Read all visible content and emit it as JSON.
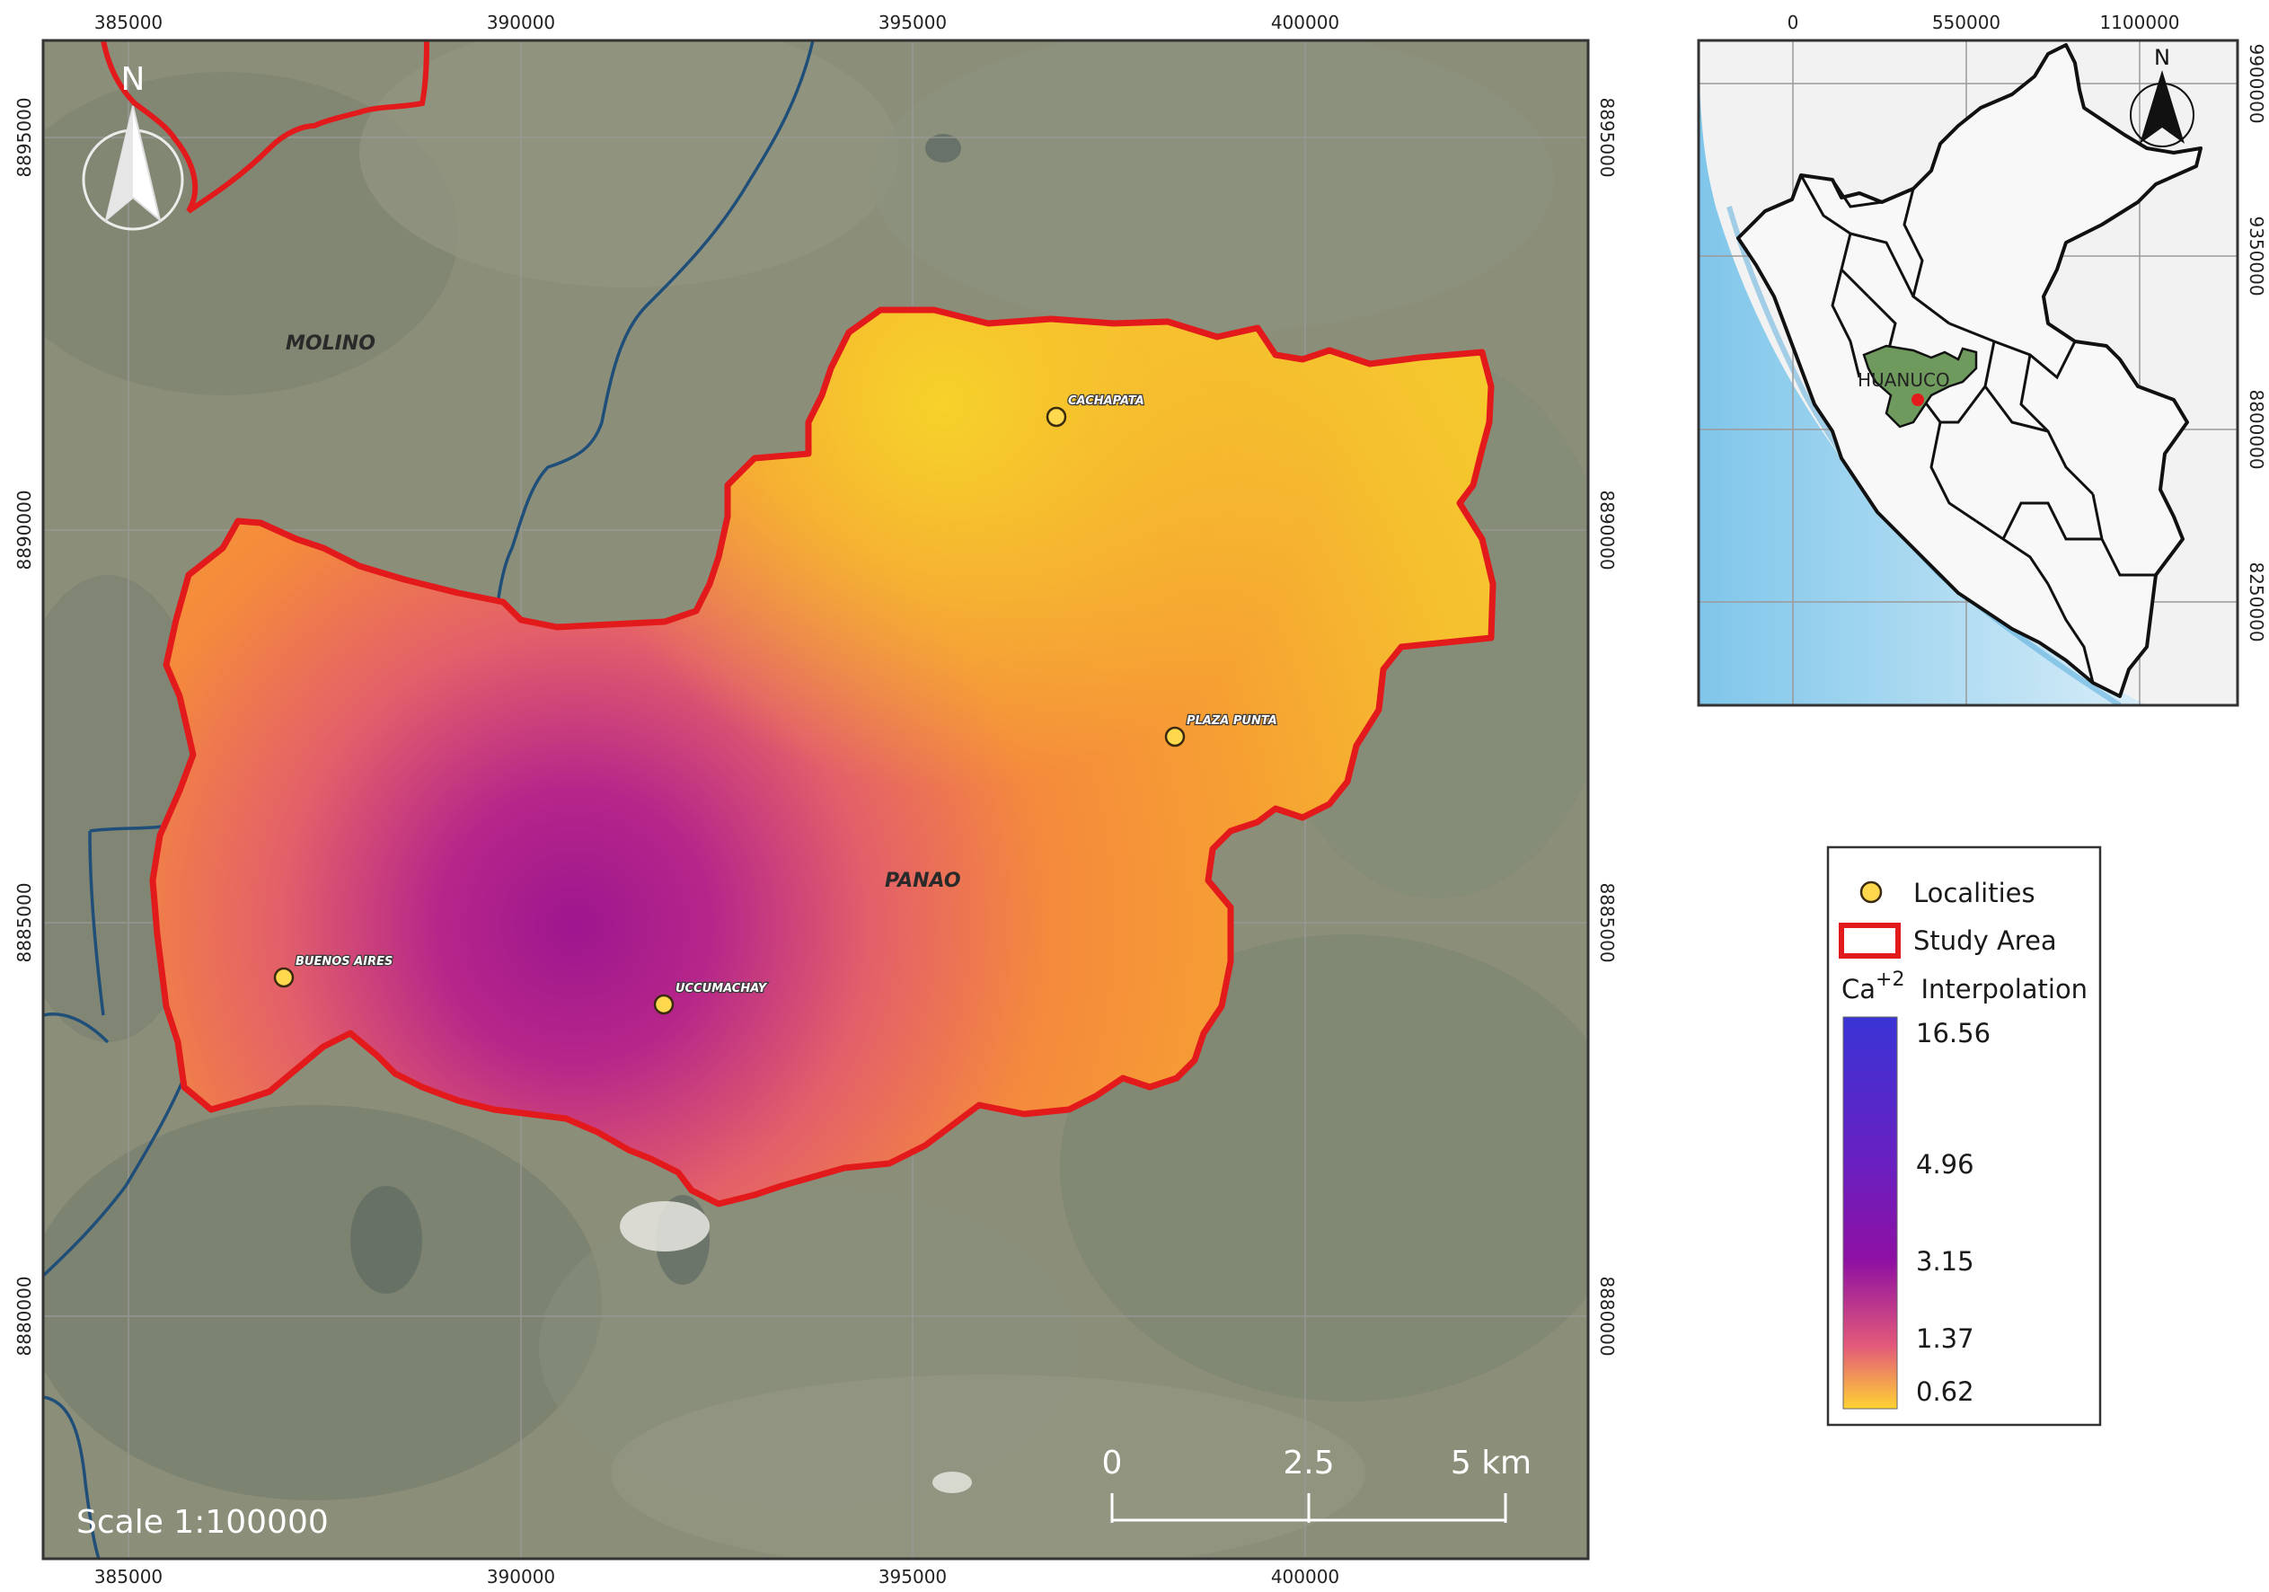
{
  "main_map": {
    "x_ticks": [
      "385000",
      "390000",
      "395000",
      "400000"
    ],
    "y_ticks": [
      "8895000",
      "8890000",
      "8885000",
      "8880000"
    ],
    "north_label": "N",
    "places": [
      {
        "name": "MOLINO"
      },
      {
        "name": "PANAO"
      }
    ],
    "localities": [
      {
        "name": "CACHAPATA"
      },
      {
        "name": "PLAZA PUNTA"
      },
      {
        "name": "BUENOS AIRES"
      },
      {
        "name": "UCCUMACHAY"
      }
    ],
    "scale_text": "Scale 1:100000",
    "scalebar": {
      "labels": [
        "0",
        "2.5",
        "5 km"
      ]
    }
  },
  "inset_map": {
    "x_ticks": [
      "0",
      "550000",
      "1100000"
    ],
    "y_ticks": [
      "9900000",
      "9350000",
      "8800000",
      "8250000"
    ],
    "north_label": "N",
    "region_label": "HUANUCO"
  },
  "legend": {
    "localities_label": "Localities",
    "study_area_label": "Study Area",
    "interp_base": "Ca",
    "interp_sup": "+2",
    "interp_label": "Interpolation",
    "ramp_values": [
      "16.56",
      "4.96",
      "3.15",
      "1.37",
      "0.62"
    ]
  },
  "colors": {
    "study_area_outline": "#e31a1c",
    "locality_fill": "#ffd84d",
    "river": "#1f4e79",
    "ramp": [
      "#3a34d6",
      "#6a1fc0",
      "#8e0fa3",
      "#e35a7a",
      "#ffd233"
    ]
  }
}
